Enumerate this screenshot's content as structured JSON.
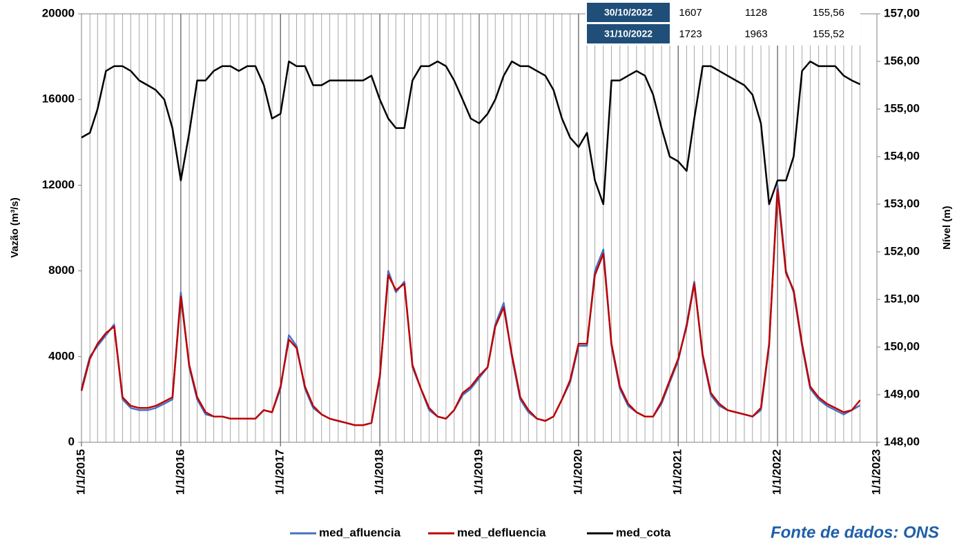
{
  "chart_data": {
    "type": "line",
    "y_label": "Vazão (m³/s)",
    "y2_label": "Nível (m)",
    "source": "Fonte de dados: ONS",
    "xlim": [
      "2015-01-01",
      "2023-01-01"
    ],
    "xticks": [
      {
        "value": "2015-01-01",
        "label": "1/1/2015"
      },
      {
        "value": "2016-01-01",
        "label": "1/1/2016"
      },
      {
        "value": "2017-01-01",
        "label": "1/1/2017"
      },
      {
        "value": "2018-01-01",
        "label": "1/1/2018"
      },
      {
        "value": "2019-01-01",
        "label": "1/1/2019"
      },
      {
        "value": "2020-01-01",
        "label": "1/1/2020"
      },
      {
        "value": "2021-01-01",
        "label": "1/1/2021"
      },
      {
        "value": "2022-01-01",
        "label": "1/1/2022"
      },
      {
        "value": "2023-01-01",
        "label": "1/1/2023"
      }
    ],
    "ylim": [
      0,
      20000
    ],
    "yticks": [
      0,
      4000,
      8000,
      12000,
      16000,
      20000
    ],
    "y2lim": [
      148,
      157
    ],
    "y2ticks": [
      {
        "value": 148,
        "label": "148,00"
      },
      {
        "value": 149,
        "label": "149,00"
      },
      {
        "value": 150,
        "label": "150,00"
      },
      {
        "value": 151,
        "label": "151,00"
      },
      {
        "value": 152,
        "label": "152,00"
      },
      {
        "value": 153,
        "label": "153,00"
      },
      {
        "value": 154,
        "label": "154,00"
      },
      {
        "value": 155,
        "label": "155,00"
      },
      {
        "value": 156,
        "label": "156,00"
      },
      {
        "value": 157,
        "label": "157,00"
      }
    ],
    "grid_x": true,
    "x": [
      "2015-01-01",
      "2015-02-01",
      "2015-03-01",
      "2015-04-01",
      "2015-05-01",
      "2015-06-01",
      "2015-07-01",
      "2015-08-01",
      "2015-09-01",
      "2015-10-01",
      "2015-11-01",
      "2015-12-01",
      "2016-01-01",
      "2016-02-01",
      "2016-03-01",
      "2016-04-01",
      "2016-05-01",
      "2016-06-01",
      "2016-07-01",
      "2016-08-01",
      "2016-09-01",
      "2016-10-01",
      "2016-11-01",
      "2016-12-01",
      "2017-01-01",
      "2017-02-01",
      "2017-03-01",
      "2017-04-01",
      "2017-05-01",
      "2017-06-01",
      "2017-07-01",
      "2017-08-01",
      "2017-09-01",
      "2017-10-01",
      "2017-11-01",
      "2017-12-01",
      "2018-01-01",
      "2018-02-01",
      "2018-03-01",
      "2018-04-01",
      "2018-05-01",
      "2018-06-01",
      "2018-07-01",
      "2018-08-01",
      "2018-09-01",
      "2018-10-01",
      "2018-11-01",
      "2018-12-01",
      "2019-01-01",
      "2019-02-01",
      "2019-03-01",
      "2019-04-01",
      "2019-05-01",
      "2019-06-01",
      "2019-07-01",
      "2019-08-01",
      "2019-09-01",
      "2019-10-01",
      "2019-11-01",
      "2019-12-01",
      "2020-01-01",
      "2020-02-01",
      "2020-03-01",
      "2020-04-01",
      "2020-05-01",
      "2020-06-01",
      "2020-07-01",
      "2020-08-01",
      "2020-09-01",
      "2020-10-01",
      "2020-11-01",
      "2020-12-01",
      "2021-01-01",
      "2021-02-01",
      "2021-03-01",
      "2021-04-01",
      "2021-05-01",
      "2021-06-01",
      "2021-07-01",
      "2021-08-01",
      "2021-09-01",
      "2021-10-01",
      "2021-11-01",
      "2021-12-01",
      "2022-01-01",
      "2022-02-01",
      "2022-03-01",
      "2022-04-01",
      "2022-05-01",
      "2022-06-01",
      "2022-07-01",
      "2022-08-01",
      "2022-09-01",
      "2022-10-01",
      "2022-10-31"
    ],
    "series": [
      {
        "name": "med_afluencia",
        "color": "#4472c4",
        "values": [
          2500,
          4000,
          4500,
          5000,
          5500,
          2000,
          1600,
          1500,
          1500,
          1600,
          1800,
          2000,
          7000,
          3500,
          2000,
          1300,
          1200,
          1200,
          1100,
          1100,
          1100,
          1100,
          1500,
          1400,
          2500,
          5000,
          4500,
          2500,
          1600,
          1300,
          1100,
          1000,
          900,
          800,
          800,
          900,
          3000,
          8000,
          7000,
          7500,
          3500,
          2500,
          1500,
          1200,
          1100,
          1500,
          2200,
          2500,
          3000,
          3500,
          5500,
          6500,
          4000,
          2000,
          1400,
          1100,
          1000,
          1200,
          2000,
          2800,
          4500,
          4500,
          8000,
          9000,
          4500,
          2500,
          1700,
          1400,
          1200,
          1200,
          1800,
          2800,
          3800,
          5500,
          7500,
          4000,
          2200,
          1700,
          1500,
          1400,
          1300,
          1200,
          1500,
          4500,
          12000,
          8000,
          7000,
          4500,
          2500,
          2000,
          1700,
          1500,
          1300,
          1500,
          1723
        ]
      },
      {
        "name": "med_defluencia",
        "color": "#c00000",
        "values": [
          2400,
          3900,
          4600,
          5100,
          5400,
          2100,
          1700,
          1600,
          1600,
          1700,
          1900,
          2100,
          6800,
          3600,
          2100,
          1400,
          1200,
          1200,
          1100,
          1100,
          1100,
          1100,
          1500,
          1400,
          2600,
          4800,
          4400,
          2600,
          1700,
          1300,
          1100,
          1000,
          900,
          800,
          800,
          900,
          3100,
          7800,
          7100,
          7400,
          3600,
          2500,
          1600,
          1200,
          1100,
          1500,
          2300,
          2600,
          3100,
          3500,
          5400,
          6300,
          4100,
          2100,
          1500,
          1100,
          1000,
          1200,
          2000,
          2900,
          4600,
          4600,
          7800,
          8800,
          4600,
          2600,
          1800,
          1400,
          1200,
          1200,
          1900,
          2900,
          3900,
          5400,
          7400,
          4100,
          2300,
          1800,
          1500,
          1400,
          1300,
          1200,
          1600,
          4600,
          11800,
          7900,
          7100,
          4600,
          2600,
          2100,
          1800,
          1600,
          1400,
          1500,
          1963
        ]
      },
      {
        "name": "med_cota",
        "color": "#000000",
        "axis": "y2",
        "values": [
          154.4,
          154.5,
          155.0,
          155.8,
          155.9,
          155.9,
          155.8,
          155.6,
          155.5,
          155.4,
          155.2,
          154.6,
          153.5,
          154.5,
          155.6,
          155.6,
          155.8,
          155.9,
          155.9,
          155.8,
          155.9,
          155.9,
          155.5,
          154.8,
          154.9,
          156.0,
          155.9,
          155.9,
          155.5,
          155.5,
          155.6,
          155.6,
          155.6,
          155.6,
          155.6,
          155.7,
          155.2,
          154.8,
          154.6,
          154.6,
          155.6,
          155.9,
          155.9,
          156.0,
          155.9,
          155.6,
          155.2,
          154.8,
          154.7,
          154.9,
          155.2,
          155.7,
          156.0,
          155.9,
          155.9,
          155.8,
          155.7,
          155.4,
          154.8,
          154.4,
          154.2,
          154.5,
          153.5,
          153.0,
          155.6,
          155.6,
          155.7,
          155.8,
          155.7,
          155.3,
          154.6,
          154.0,
          153.9,
          153.7,
          154.8,
          155.9,
          155.9,
          155.8,
          155.7,
          155.6,
          155.5,
          155.3,
          154.7,
          153.0,
          153.5,
          153.5,
          154.0,
          155.8,
          156.0,
          155.9,
          155.9,
          155.9,
          155.7,
          155.6,
          155.52
        ]
      }
    ]
  },
  "table": {
    "rows": [
      [
        "30/10/2022",
        "1607",
        "1128",
        "155,56"
      ],
      [
        "31/10/2022",
        "1723",
        "1963",
        "155,52"
      ]
    ]
  }
}
